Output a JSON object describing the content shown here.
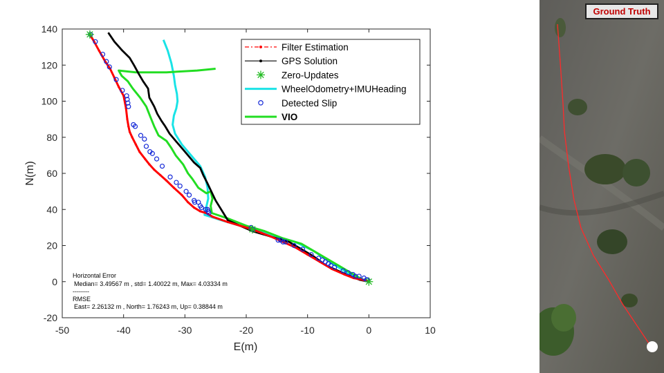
{
  "chart_data": {
    "type": "line",
    "xlabel": "E(m)",
    "ylabel": "N(m)",
    "xlim": [
      -50,
      10
    ],
    "ylim": [
      -20,
      140
    ],
    "xticks": [
      -50,
      -40,
      -30,
      -20,
      -10,
      0,
      10
    ],
    "yticks": [
      -20,
      0,
      20,
      40,
      60,
      80,
      100,
      120,
      140
    ],
    "grid": false,
    "legend_position": "top-right",
    "series": [
      {
        "name": "Filter Estimation",
        "color": "#ff0000",
        "style": "dash-dot-marker",
        "x": [
          -45.5,
          -44.8,
          -44,
          -43,
          -42.2,
          -41.5,
          -40.8,
          -40,
          -39.6,
          -39.4,
          -39.2,
          -39,
          -38.6,
          -38,
          -37.4,
          -36.5,
          -35.8,
          -35,
          -34,
          -33,
          -31.8,
          -30.5,
          -29.5,
          -28.5,
          -27.5,
          -26.5,
          -25.5,
          -23,
          -21,
          -19,
          -17.5,
          -16,
          -14,
          -12,
          -10,
          -8,
          -6,
          -4,
          -2.5,
          -1,
          0
        ],
        "y": [
          137,
          133,
          128,
          122,
          118,
          113,
          108,
          103,
          96,
          90,
          86,
          83,
          80,
          76,
          72,
          68,
          65,
          62,
          59,
          56,
          52,
          48,
          44,
          41,
          39,
          38,
          36,
          33,
          31,
          29,
          27,
          25,
          22,
          19,
          15,
          11,
          7,
          4,
          2,
          1,
          0
        ]
      },
      {
        "name": "GPS Solution",
        "color": "#000000",
        "style": "solid-dot",
        "x": [
          -42.5,
          -41.5,
          -40.2,
          -39,
          -38.3,
          -37.5,
          -36.8,
          -36,
          -35.8,
          -35,
          -34.5,
          -33.8,
          -33.2,
          -32.5,
          -31.5,
          -30.5,
          -29.5,
          -28.5,
          -27.5,
          -27,
          -26.4,
          -25,
          -23,
          -21,
          -19,
          -17,
          -15,
          -13,
          -11,
          -9,
          -7,
          -5,
          -3,
          -1.5,
          0
        ],
        "y": [
          138,
          133,
          128,
          124,
          120,
          115,
          111,
          107,
          102,
          97,
          93,
          89,
          86,
          82,
          78,
          74,
          70,
          66,
          63,
          59,
          55,
          45,
          34,
          31,
          28,
          26,
          24,
          22,
          18,
          14,
          9,
          6,
          3,
          1,
          0
        ]
      },
      {
        "name": "Zero-Updates",
        "color": "#22bb22",
        "style": "star-marker",
        "x": [
          -45.5,
          -19,
          0
        ],
        "y": [
          137,
          29,
          0
        ]
      },
      {
        "name": "WheelOdometry+IMUHeading",
        "color": "#19e3e6",
        "style": "solid",
        "x": [
          -33.5,
          -32.8,
          -32.2,
          -31.8,
          -31.6,
          -31.3,
          -31.2,
          -31.4,
          -31.8,
          -32,
          -31.6,
          -30.5,
          -29,
          -27.5,
          -26.7,
          -26.3,
          -26.2,
          -26.8,
          -24,
          -21,
          -18,
          -15,
          -12,
          -9,
          -6,
          -3,
          0
        ],
        "y": [
          134,
          128,
          121,
          114,
          109,
          104,
          100,
          96,
          92,
          87,
          82,
          76,
          70,
          64,
          58,
          52,
          46,
          37,
          34,
          31,
          28,
          25,
          22,
          17,
          10,
          4,
          0
        ]
      },
      {
        "name": "Detected Slip",
        "color": "#1428d7",
        "style": "circle-marker",
        "x": [
          -45.4,
          -44.6,
          -43.4,
          -42.8,
          -42.3,
          -41.2,
          -40.2,
          -39.5,
          -39.4,
          -39.3,
          -39.2,
          -38.4,
          -38.1,
          -37.2,
          -36.6,
          -36.3,
          -35.7,
          -35.3,
          -34.6,
          -33.7,
          -32.4,
          -31.4,
          -30.8,
          -29.8,
          -29.3,
          -28.5,
          -28.4,
          -27.8,
          -27.5,
          -27.3,
          -26.6,
          -26.3,
          -26.2,
          -26.1,
          -19.2,
          -18.9,
          -14.8,
          -14.4,
          -14,
          -13.6,
          -12.2,
          -10.8,
          -9.4,
          -8.2,
          -7.6,
          -7.1,
          -6.6,
          -6.2,
          -5.6,
          -4.2,
          -3.4,
          -2.6,
          -2.2,
          -1.6,
          -0.8,
          -0.4,
          -0.2
        ],
        "y": [
          137,
          133,
          126,
          122,
          119,
          112,
          106,
          103,
          101,
          99,
          97,
          87,
          86,
          81,
          79,
          75,
          72,
          71,
          68,
          64,
          58,
          55,
          53,
          50,
          48,
          45,
          44,
          44,
          42,
          41,
          40,
          40,
          39,
          38,
          30,
          29,
          23,
          23,
          22,
          22,
          20,
          18,
          15,
          13,
          12,
          11,
          10,
          9,
          8,
          6,
          5,
          4,
          3,
          3,
          2,
          1,
          1
        ]
      },
      {
        "name": "VIO",
        "color": "#22dd22",
        "style": "solid-thick",
        "x": [
          -25,
          -28,
          -33,
          -38,
          -40.8,
          -40.3,
          -39.3,
          -38.5,
          -37.3,
          -36.3,
          -35.6,
          -35,
          -34.3,
          -33,
          -32.2,
          -31.5,
          -30.3,
          -29.5,
          -28.8,
          -27.8,
          -26.5,
          -25.8,
          -25.5,
          -25.8,
          -25.6,
          -23,
          -20,
          -17,
          -14,
          -11,
          -8,
          -5,
          -2.5,
          -1,
          0
        ],
        "y": [
          118,
          117,
          116,
          116,
          117,
          114,
          111,
          107,
          102,
          97,
          91,
          86,
          81,
          78,
          74,
          70,
          65,
          60,
          57,
          52,
          49,
          50,
          46,
          42,
          38,
          35,
          31,
          28,
          24,
          21,
          15,
          9,
          4,
          1,
          0
        ]
      }
    ],
    "annotation": {
      "heading": "Horizontal Error",
      "stats": "Median= 3.49567 m , std= 1.40022 m, Max= 4.03334 m",
      "separator": "--------",
      "rmse_heading": "RMSE",
      "rmse": "East= 2.26132 m , North= 1.76243 m, Up= 0.38844 m"
    }
  },
  "satellite_panel": {
    "label": "Ground Truth",
    "label_color": "#c00000",
    "track_color": "#ff2a2a",
    "marker_color": "#ffffff"
  }
}
